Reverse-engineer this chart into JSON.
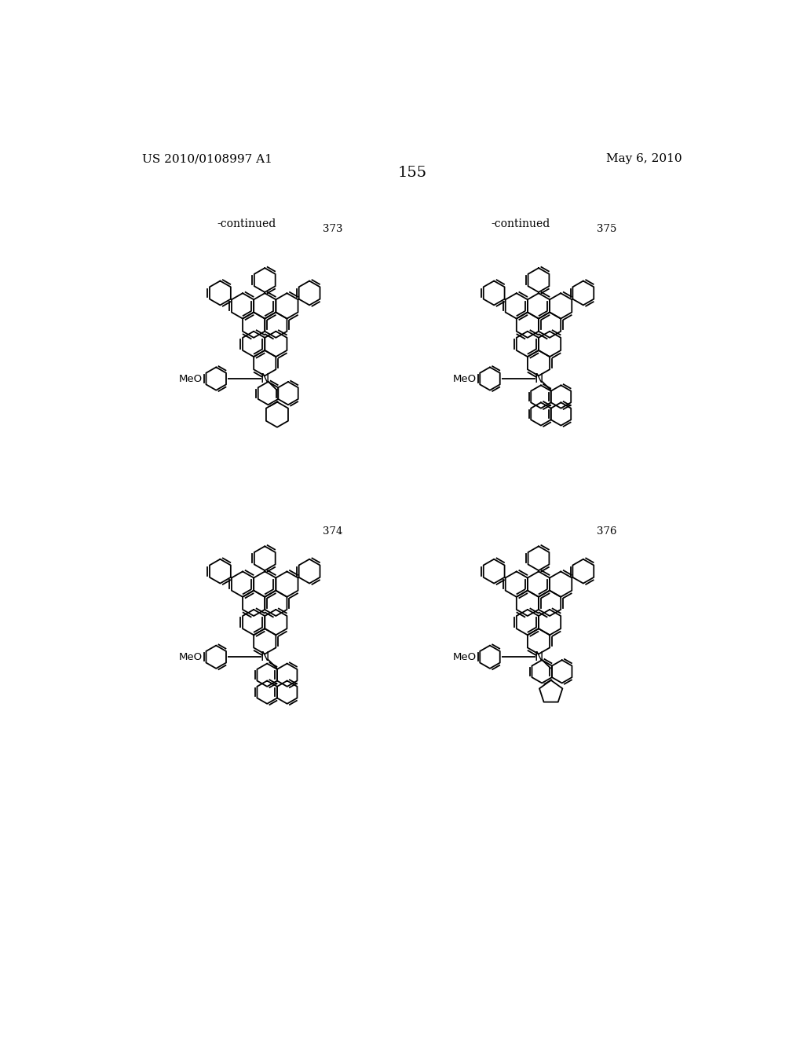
{
  "page_header_left": "US 2010/0108997 A1",
  "page_header_right": "May 6, 2010",
  "page_number": "155",
  "bg": "#ffffff",
  "fg": "#000000",
  "lbl_cont": "-continued",
  "n373": "373",
  "n374": "374",
  "n375": "375",
  "n376": "376",
  "meo": "MeO",
  "n_atom": "N"
}
